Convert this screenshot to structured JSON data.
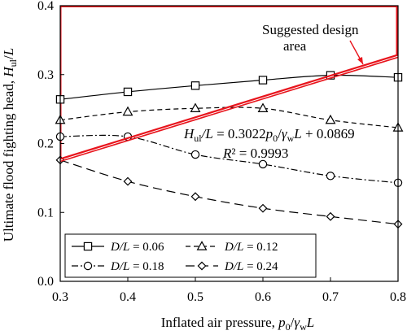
{
  "chart_data": {
    "type": "line",
    "xlabel": "Inflated air pressure, p0/γwL",
    "xlabel_parts": {
      "text": "Inflated air pressure, ",
      "var_p": "p",
      "sub_0": "0",
      "slash": "/",
      "var_gamma": "γ",
      "sub_w": "w",
      "var_L": "L"
    },
    "ylabel": "Ultimate flood fighting head, Hul/L",
    "ylabel_parts": {
      "text": "Ultimate flood fighting head, ",
      "var_H": "H",
      "sub_ul": "ul",
      "slash": "/",
      "var_L": "L"
    },
    "xlim": [
      0.3,
      0.8
    ],
    "ylim": [
      0.0,
      0.4
    ],
    "x_ticks": [
      "0.3",
      "0.4",
      "0.5",
      "0.6",
      "0.7",
      "0.8"
    ],
    "y_ticks": [
      "0.0",
      "0.1",
      "0.2",
      "0.3",
      "0.4"
    ],
    "x": [
      0.3,
      0.4,
      0.5,
      0.6,
      0.7,
      0.8
    ],
    "series": [
      {
        "name": "D/L = 0.06",
        "label_var": "D/L",
        "label_val": " = 0.06",
        "marker": "square",
        "dash": "solid",
        "values": [
          0.264,
          0.275,
          0.284,
          0.292,
          0.299,
          0.296
        ]
      },
      {
        "name": "D/L = 0.12",
        "label_var": "D/L",
        "label_val": " = 0.12",
        "marker": "triangle",
        "dash": "dashed",
        "values": [
          0.234,
          0.246,
          0.251,
          0.251,
          0.234,
          0.223
        ]
      },
      {
        "name": "D/L = 0.18",
        "label_var": "D/L",
        "label_val": " = 0.18",
        "marker": "circle",
        "dash": "dashdot",
        "values": [
          0.21,
          0.21,
          0.184,
          0.17,
          0.153,
          0.143
        ]
      },
      {
        "name": "D/L = 0.24",
        "label_var": "D/L",
        "label_val": " = 0.24",
        "marker": "diamond",
        "dash": "longdash",
        "values": [
          0.176,
          0.145,
          0.123,
          0.106,
          0.094,
          0.083
        ]
      }
    ],
    "fit_line": {
      "x": [
        0.3,
        0.8
      ],
      "values": [
        0.1776,
        0.3287
      ]
    },
    "design_region": {
      "x": [
        0.3,
        0.8
      ],
      "y_top": 0.4
    },
    "annotations": {
      "design_area_line1": "Suggested design",
      "design_area_line2": "area",
      "equation": {
        "H": "H",
        "ul": "ul",
        "slashL": "/L",
        "mid": " = 0.3022",
        "p": "p",
        "sub0": "0",
        "slash": "/",
        "gamma": "γ",
        "subw": "w",
        "L": "L",
        "tail": " + 0.0869"
      },
      "r2": {
        "R": "R",
        "sq": "² = 0.9993"
      }
    },
    "legend_position": "bottom",
    "grid": false,
    "colors": {
      "series": "#000000",
      "fit": "#e8141c",
      "design": "#e8141c"
    }
  }
}
